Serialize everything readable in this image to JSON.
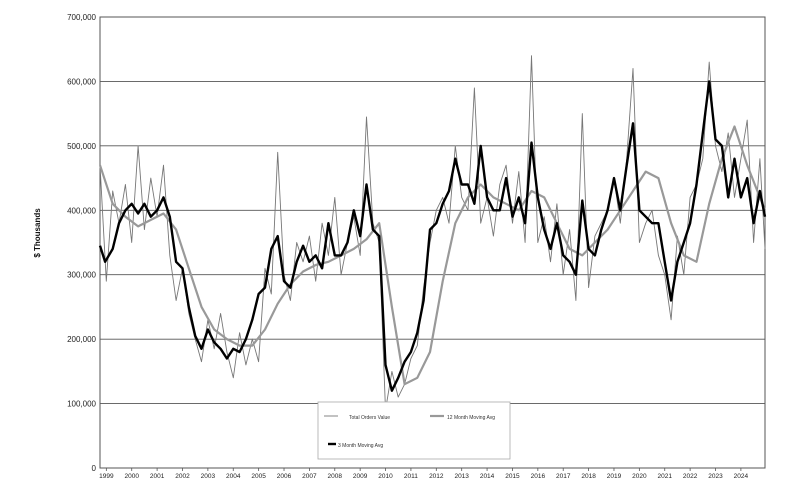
{
  "chart_data": {
    "type": "line",
    "title": "",
    "xlabel": "",
    "ylabel": "$ Thousands",
    "ylim": [
      0,
      700000
    ],
    "yticks": [
      "0",
      "100,000",
      "200,000",
      "300,000",
      "400,000",
      "500,000",
      "600,000",
      "700,000"
    ],
    "xlim": [
      1998.0,
      2024.2
    ],
    "xticks": [
      "1999",
      "2000",
      "2001",
      "2002",
      "2003",
      "2004",
      "2005",
      "2006",
      "2007",
      "2008",
      "2009",
      "2010",
      "2011",
      "2012",
      "2013",
      "2014",
      "2015",
      "2016",
      "2017",
      "2018",
      "2019",
      "2020",
      "2021",
      "2022",
      "2023",
      "2024"
    ],
    "grid": "horizontal",
    "legend_position": "bottom-center",
    "series": [
      {
        "name": "Total Orders Value",
        "color": "#777777",
        "x": [
          1998.0,
          1998.25,
          1998.5,
          1998.75,
          1999.0,
          1999.25,
          1999.5,
          1999.75,
          2000.0,
          2000.25,
          2000.5,
          2000.75,
          2001.0,
          2001.25,
          2001.5,
          2001.75,
          2002.0,
          2002.25,
          2002.5,
          2002.75,
          2003.0,
          2003.25,
          2003.5,
          2003.75,
          2004.0,
          2004.25,
          2004.5,
          2004.75,
          2005.0,
          2005.25,
          2005.5,
          2005.75,
          2006.0,
          2006.25,
          2006.5,
          2006.75,
          2007.0,
          2007.25,
          2007.5,
          2007.75,
          2008.0,
          2008.25,
          2008.5,
          2008.75,
          2009.0,
          2009.25,
          2009.5,
          2009.75,
          2010.0,
          2010.25,
          2010.5,
          2010.75,
          2011.0,
          2011.25,
          2011.5,
          2011.75,
          2012.0,
          2012.25,
          2012.5,
          2012.75,
          2013.0,
          2013.25,
          2013.5,
          2013.75,
          2014.0,
          2014.25,
          2014.5,
          2014.75,
          2015.0,
          2015.25,
          2015.5,
          2015.75,
          2016.0,
          2016.25,
          2016.5,
          2016.75,
          2017.0,
          2017.25,
          2017.5,
          2017.75,
          2018.0,
          2018.25,
          2018.5,
          2018.75,
          2019.0,
          2019.25,
          2019.5,
          2019.75,
          2020.0,
          2020.25,
          2020.5,
          2020.75,
          2021.0,
          2021.25,
          2021.5,
          2021.75,
          2022.0,
          2022.25,
          2022.5,
          2022.75,
          2023.0,
          2023.25,
          2023.5,
          2023.75,
          2024.0,
          2024.2
        ],
        "values": [
          470000,
          290000,
          430000,
          380000,
          440000,
          350000,
          500000,
          370000,
          450000,
          390000,
          470000,
          330000,
          260000,
          310000,
          240000,
          200000,
          165000,
          230000,
          185000,
          240000,
          180000,
          140000,
          210000,
          160000,
          200000,
          165000,
          310000,
          270000,
          490000,
          300000,
          260000,
          350000,
          320000,
          360000,
          290000,
          380000,
          330000,
          420000,
          300000,
          350000,
          390000,
          330000,
          545000,
          380000,
          350000,
          90000,
          150000,
          110000,
          130000,
          170000,
          190000,
          280000,
          350000,
          400000,
          420000,
          380000,
          500000,
          420000,
          400000,
          590000,
          380000,
          420000,
          360000,
          440000,
          470000,
          380000,
          460000,
          350000,
          640000,
          350000,
          390000,
          320000,
          410000,
          300000,
          370000,
          260000,
          550000,
          280000,
          360000,
          380000,
          400000,
          450000,
          380000,
          480000,
          620000,
          350000,
          380000,
          400000,
          330000,
          300000,
          230000,
          360000,
          300000,
          420000,
          440000,
          480000,
          630000,
          500000,
          460000,
          520000,
          420000,
          480000,
          540000,
          350000,
          480000,
          340000
        ]
      },
      {
        "name": "12 Month Moving Avg",
        "color": "#999999",
        "x": [
          1998.0,
          1998.5,
          1999.0,
          1999.5,
          2000.0,
          2000.5,
          2001.0,
          2001.5,
          2002.0,
          2002.5,
          2003.0,
          2003.5,
          2004.0,
          2004.5,
          2005.0,
          2005.5,
          2006.0,
          2006.5,
          2007.0,
          2007.5,
          2008.0,
          2008.5,
          2009.0,
          2009.5,
          2010.0,
          2010.5,
          2011.0,
          2011.5,
          2012.0,
          2012.5,
          2013.0,
          2013.5,
          2014.0,
          2014.5,
          2015.0,
          2015.5,
          2016.0,
          2016.5,
          2017.0,
          2017.5,
          2018.0,
          2018.5,
          2019.0,
          2019.5,
          2020.0,
          2020.5,
          2021.0,
          2021.5,
          2022.0,
          2022.5,
          2023.0,
          2023.5,
          2024.0,
          2024.2
        ],
        "values": [
          470000,
          410000,
          390000,
          375000,
          385000,
          395000,
          370000,
          310000,
          250000,
          215000,
          200000,
          190000,
          190000,
          215000,
          255000,
          285000,
          305000,
          315000,
          320000,
          330000,
          340000,
          355000,
          380000,
          250000,
          130000,
          140000,
          180000,
          290000,
          380000,
          420000,
          440000,
          420000,
          410000,
          400000,
          430000,
          420000,
          380000,
          340000,
          330000,
          350000,
          370000,
          400000,
          430000,
          460000,
          450000,
          380000,
          330000,
          320000,
          410000,
          480000,
          530000,
          470000,
          420000,
          400000
        ]
      },
      {
        "name": "3 Month Moving Avg",
        "color": "#000000",
        "x": [
          1998.0,
          1998.2,
          1998.5,
          1998.75,
          1999.0,
          1999.25,
          1999.5,
          1999.75,
          2000.0,
          2000.25,
          2000.5,
          2000.75,
          2001.0,
          2001.25,
          2001.5,
          2001.75,
          2002.0,
          2002.25,
          2002.5,
          2002.75,
          2003.0,
          2003.25,
          2003.5,
          2003.75,
          2004.0,
          2004.25,
          2004.5,
          2004.75,
          2005.0,
          2005.25,
          2005.5,
          2005.75,
          2006.0,
          2006.25,
          2006.5,
          2006.75,
          2007.0,
          2007.25,
          2007.5,
          2007.75,
          2008.0,
          2008.25,
          2008.5,
          2008.75,
          2009.0,
          2009.25,
          2009.5,
          2009.75,
          2010.0,
          2010.25,
          2010.5,
          2010.75,
          2011.0,
          2011.25,
          2011.5,
          2011.75,
          2012.0,
          2012.25,
          2012.5,
          2012.75,
          2013.0,
          2013.25,
          2013.5,
          2013.75,
          2014.0,
          2014.25,
          2014.5,
          2014.75,
          2015.0,
          2015.25,
          2015.5,
          2015.75,
          2016.0,
          2016.25,
          2016.5,
          2016.75,
          2017.0,
          2017.25,
          2017.5,
          2017.75,
          2018.0,
          2018.25,
          2018.5,
          2018.75,
          2019.0,
          2019.25,
          2019.5,
          2019.75,
          2020.0,
          2020.25,
          2020.5,
          2020.75,
          2021.0,
          2021.25,
          2021.5,
          2021.75,
          2022.0,
          2022.25,
          2022.5,
          2022.75,
          2023.0,
          2023.25,
          2023.5,
          2023.75,
          2024.0,
          2024.2
        ],
        "values": [
          345000,
          320000,
          340000,
          380000,
          400000,
          410000,
          395000,
          410000,
          390000,
          400000,
          420000,
          390000,
          320000,
          310000,
          250000,
          205000,
          185000,
          215000,
          195000,
          185000,
          170000,
          185000,
          180000,
          200000,
          230000,
          270000,
          280000,
          340000,
          360000,
          290000,
          280000,
          320000,
          345000,
          320000,
          330000,
          310000,
          380000,
          330000,
          330000,
          350000,
          400000,
          360000,
          440000,
          370000,
          360000,
          160000,
          120000,
          140000,
          165000,
          180000,
          210000,
          260000,
          370000,
          380000,
          410000,
          430000,
          480000,
          440000,
          440000,
          410000,
          500000,
          420000,
          400000,
          400000,
          450000,
          390000,
          420000,
          380000,
          505000,
          420000,
          370000,
          340000,
          380000,
          330000,
          320000,
          300000,
          415000,
          340000,
          330000,
          370000,
          400000,
          450000,
          400000,
          470000,
          535000,
          400000,
          390000,
          380000,
          380000,
          320000,
          260000,
          320000,
          350000,
          380000,
          440000,
          520000,
          600000,
          510000,
          500000,
          420000,
          480000,
          420000,
          450000,
          380000,
          430000,
          390000
        ]
      }
    ]
  }
}
